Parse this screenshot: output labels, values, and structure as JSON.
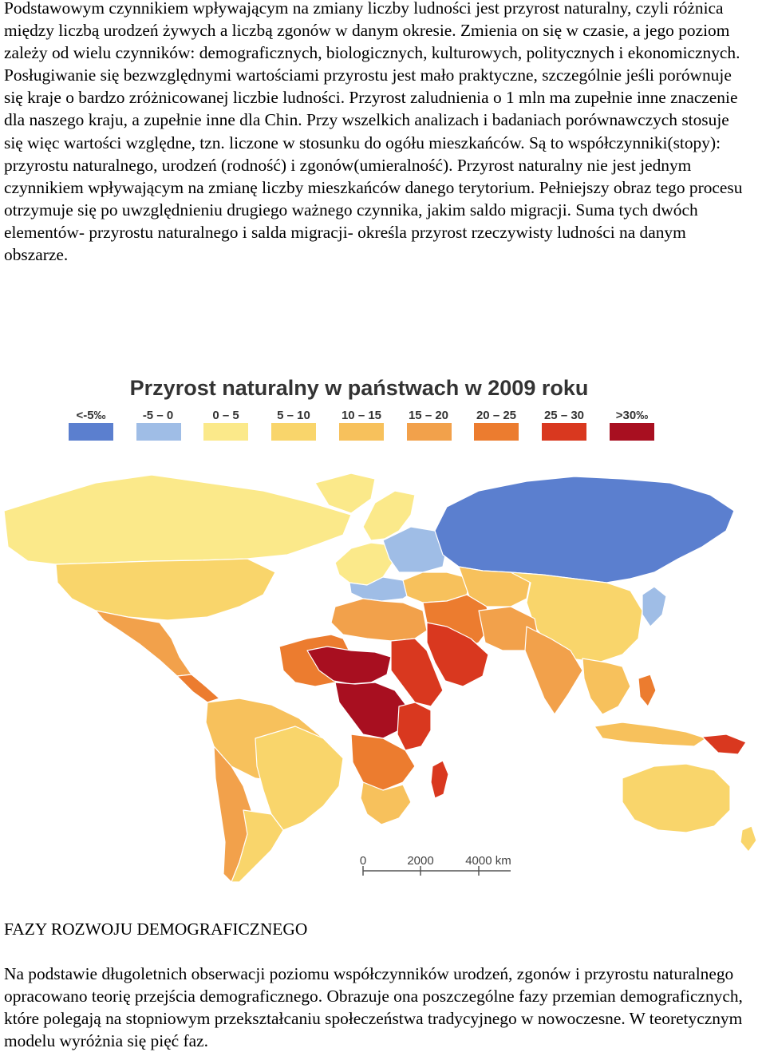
{
  "intro_text": "Podstawowym czynnikiem wpływającym na zmiany liczby ludności jest przyrost naturalny, czyli różnica między liczbą urodzeń żywych a liczbą zgonów w danym okresie. Zmienia on się w czasie, a jego poziom zależy od wielu czynników: demograficznych, biologicznych, kulturowych, politycznych i ekonomicznych. Posługiwanie się bezwzględnymi wartościami przyrostu jest mało praktyczne, szczególnie jeśli porównuje się kraje o bardzo zróżnicowanej liczbie ludności. Przyrost zaludnienia o 1 mln ma zupełnie inne znaczenie dla naszego kraju, a zupełnie inne dla Chin. Przy wszelkich analizach i badaniach porównawczych stosuje się więc wartości względne, tzn. liczone w stosunku do ogółu mieszkańców. Są to współczynniki(stopy): przyrostu naturalnego, urodzeń (rodność) i zgonów(umieralność). Przyrost naturalny nie jest jednym czynnikiem wpływającym na zmianę liczby mieszkańców danego terytorium. Pełniejszy obraz tego procesu otrzymuje się po uwzględnieniu drugiego ważnego czynnika, jakim saldo migracji. Suma tych dwóch elementów- przyrostu naturalnego i salda migracji- określa przyrost rzeczywisty ludności na danym obszarze.",
  "map": {
    "title": "Przyrost naturalny w państwach w 2009 roku",
    "legend": [
      {
        "label": "<-5‰",
        "color": "#5b7fcf"
      },
      {
        "label": "-5 – 0",
        "color": "#9fbde6"
      },
      {
        "label": "0 – 5",
        "color": "#fbe98a"
      },
      {
        "label": "5 – 10",
        "color": "#f9d56b"
      },
      {
        "label": "10 – 15",
        "color": "#f7c15c"
      },
      {
        "label": "15 – 20",
        "color": "#f2a14b"
      },
      {
        "label": "20 – 25",
        "color": "#ec7c2f"
      },
      {
        "label": "25 – 30",
        "color": "#d9381f"
      },
      {
        "label": ">30‰",
        "color": "#a80f20"
      }
    ],
    "scale": {
      "labels": [
        "0",
        "2000",
        "4000 km"
      ]
    }
  },
  "heading": "FAZY ROZWOJU DEMOGRAFICZNEGO",
  "outro_text": "Na podstawie długoletnich obserwacji poziomu współczynników urodzeń, zgonów i przyrostu naturalnego opracowano teorię przejścia demograficznego. Obrazuje ona poszczególne fazy przemian demograficznych, które polegają na stopniowym przekształcaniu społeczeństwa tradycyjnego w nowoczesne. W teoretycznym modelu wyróżnia się pięć faz."
}
